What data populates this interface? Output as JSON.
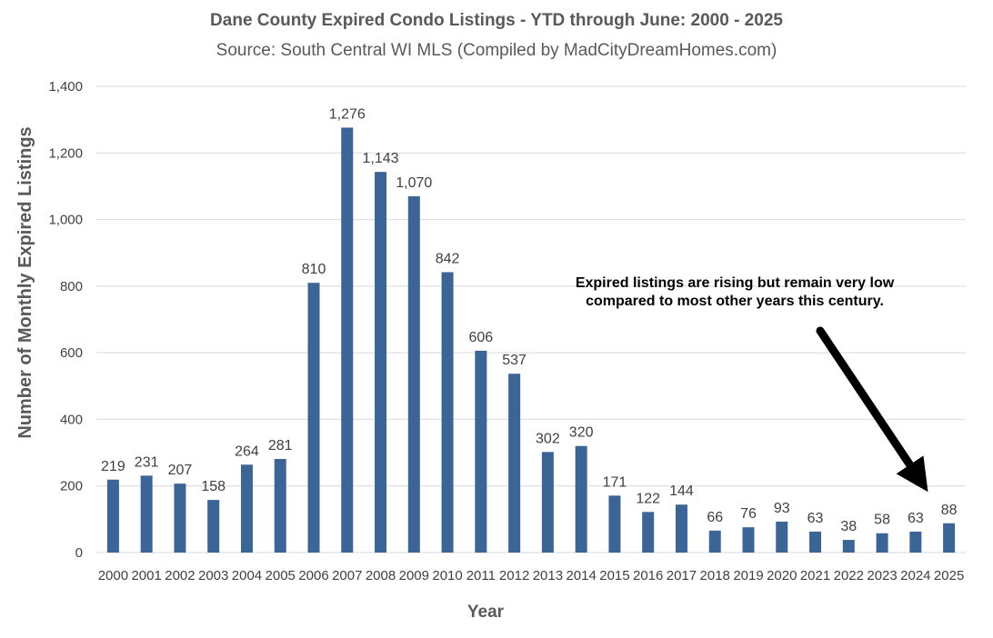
{
  "chart_data": {
    "type": "bar",
    "title": "Dane County Expired Condo Listings - YTD through June: 2000 - 2025",
    "subtitle": "Source: South Central WI MLS (Compiled by MadCityDreamHomes.com)",
    "xlabel": "Year",
    "ylabel": "Number of Monthly Expired Listings",
    "ylim": [
      0,
      1400
    ],
    "yticks": [
      0,
      200,
      400,
      600,
      800,
      1000,
      1200,
      1400
    ],
    "ytick_labels": [
      "0",
      "200",
      "400",
      "600",
      "800",
      "1,000",
      "1,200",
      "1,400"
    ],
    "grid": true,
    "categories": [
      "2000",
      "2001",
      "2002",
      "2003",
      "2004",
      "2005",
      "2006",
      "2007",
      "2008",
      "2009",
      "2010",
      "2011",
      "2012",
      "2013",
      "2014",
      "2015",
      "2016",
      "2017",
      "2018",
      "2019",
      "2020",
      "2021",
      "2022",
      "2023",
      "2024",
      "2025"
    ],
    "values": [
      219,
      231,
      207,
      158,
      264,
      281,
      810,
      1276,
      1143,
      1070,
      842,
      606,
      537,
      302,
      320,
      171,
      122,
      144,
      66,
      76,
      93,
      63,
      38,
      58,
      63,
      88
    ],
    "value_labels": [
      "219",
      "231",
      "207",
      "158",
      "264",
      "281",
      "810",
      "1,276",
      "1,143",
      "1,070",
      "842",
      "606",
      "537",
      "302",
      "320",
      "171",
      "122",
      "144",
      "66",
      "76",
      "93",
      "63",
      "38",
      "58",
      "63",
      "88"
    ],
    "annotation": {
      "lines": [
        "Expired listings are rising but remain very low",
        "compared to most other years this century."
      ],
      "points_to": "2025"
    },
    "colors": {
      "bar": "#3B6497",
      "grid": "#D9D9D9",
      "text": "#404040",
      "title": "#595959",
      "arrow": "#000000"
    }
  }
}
